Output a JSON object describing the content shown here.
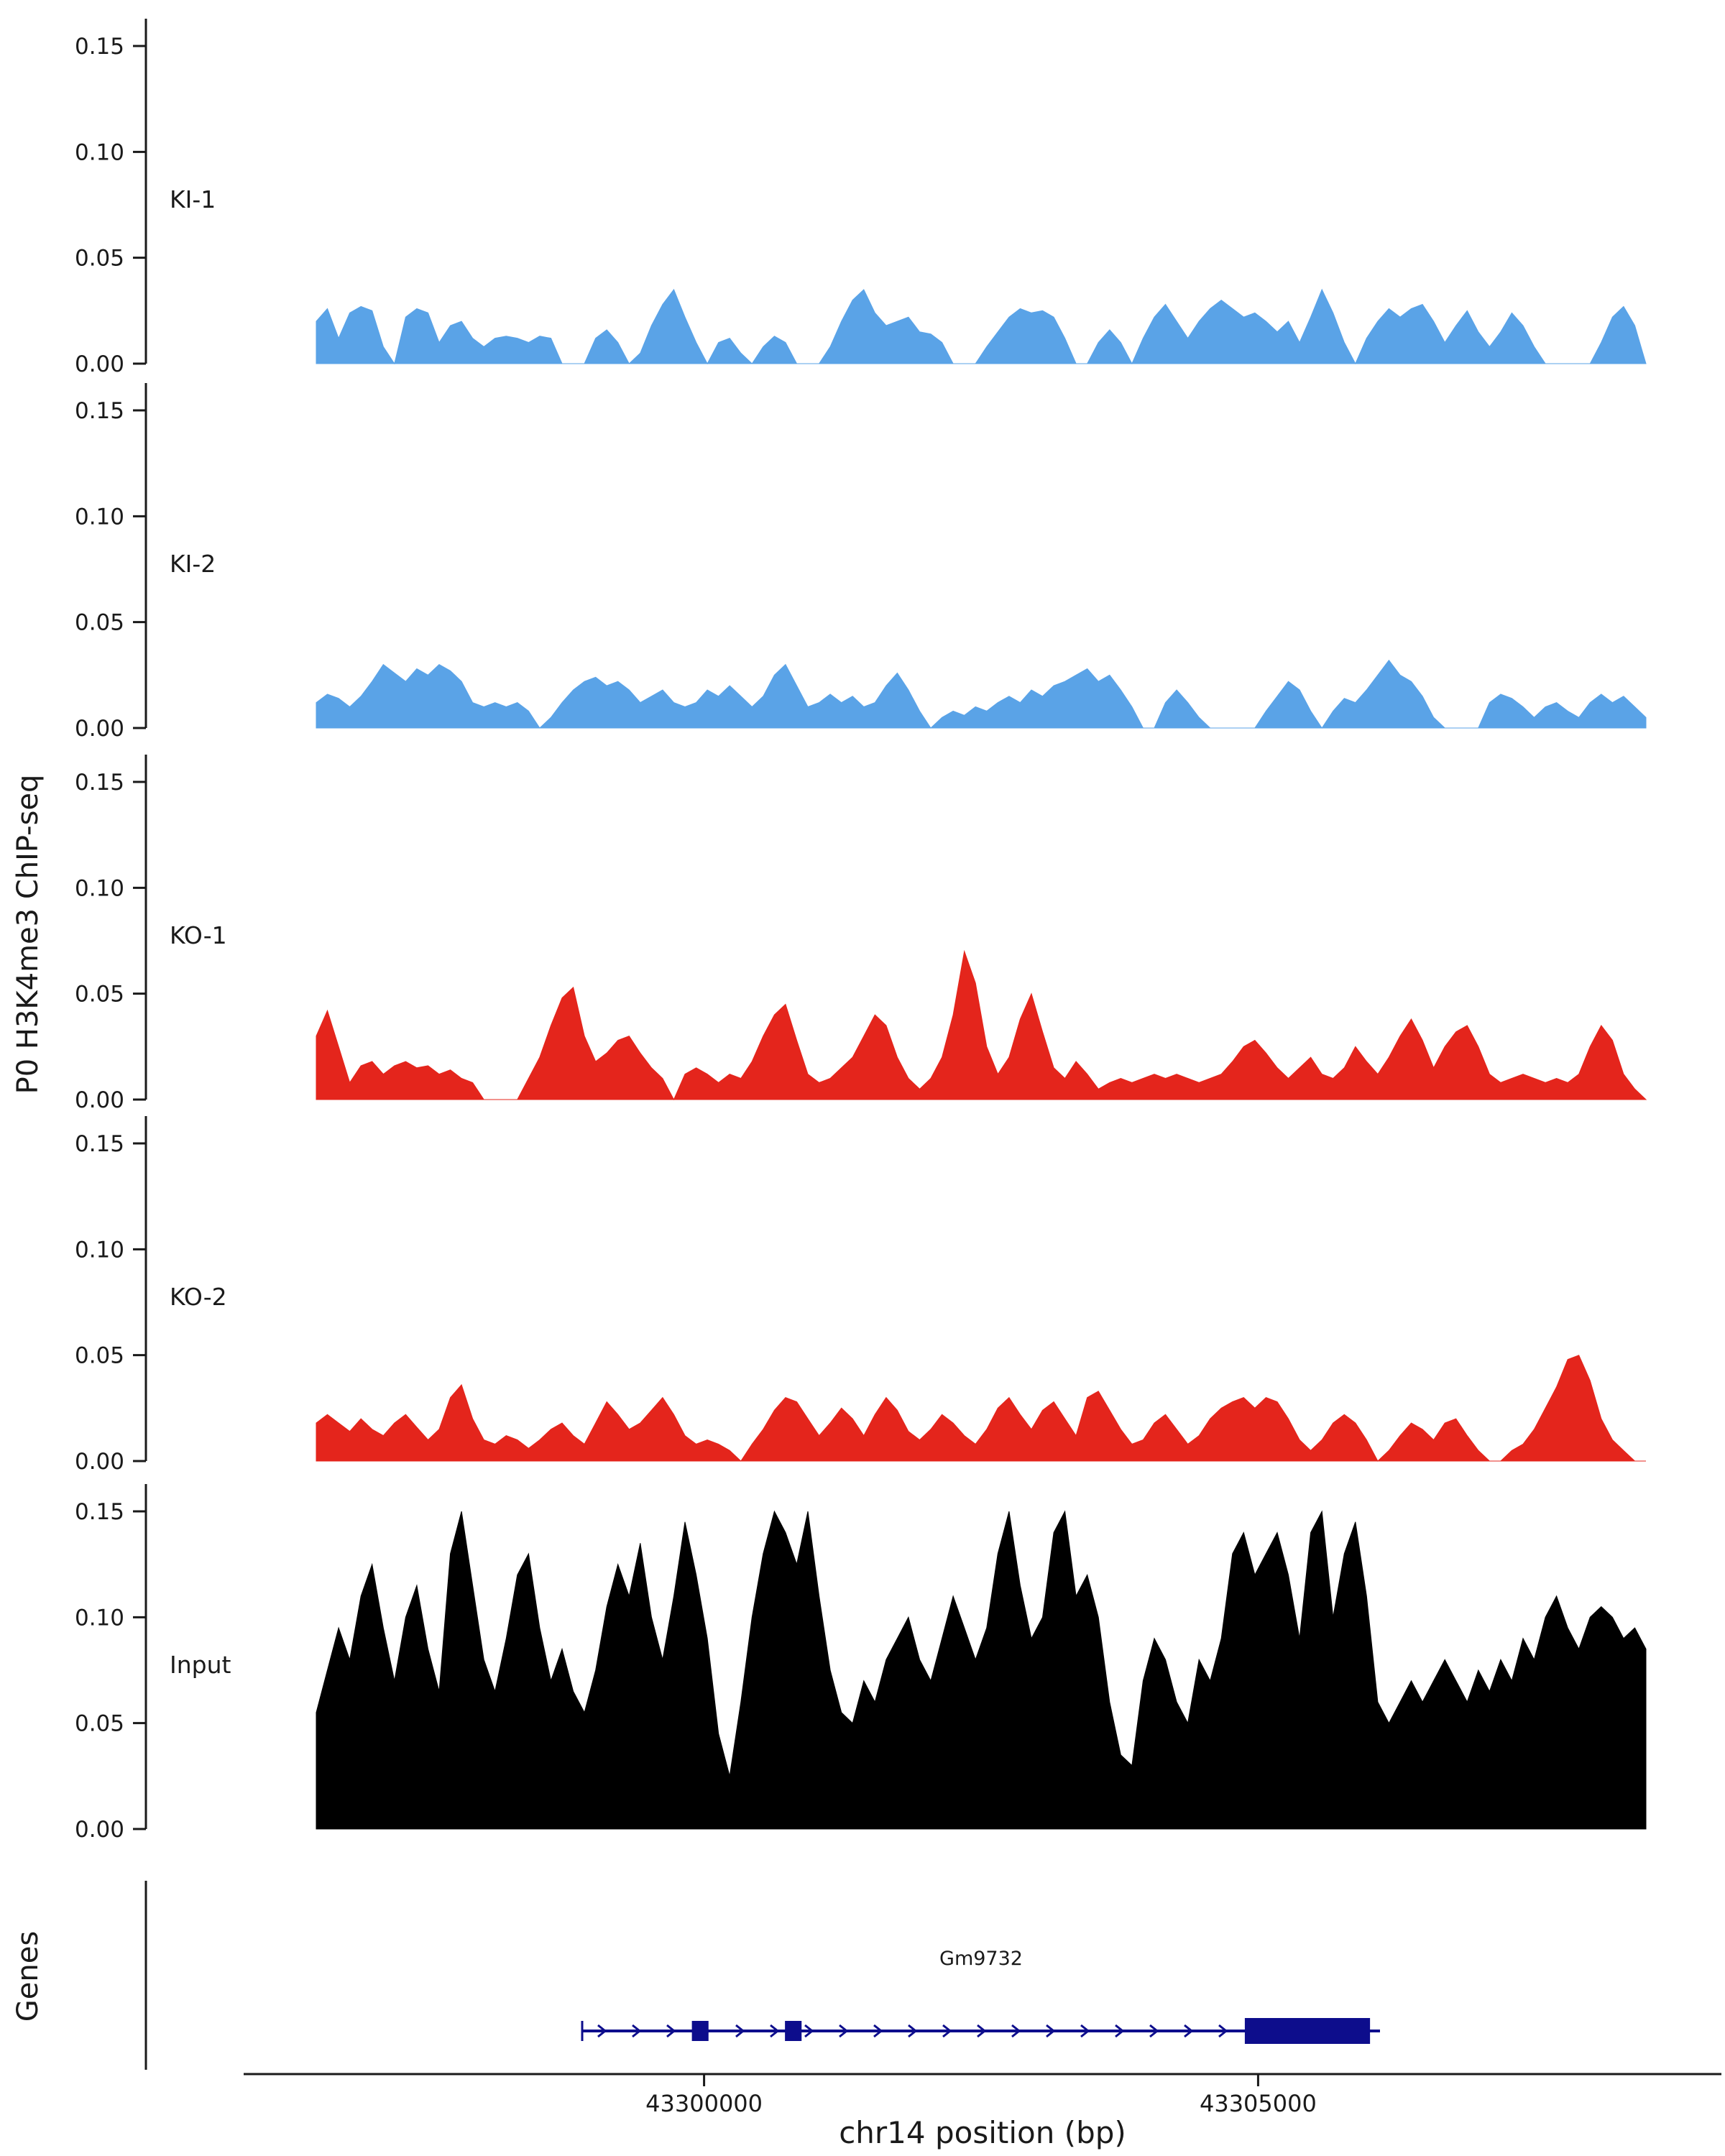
{
  "labels": {
    "y_axis_title": "P0 H3K4me3 ChIP-seq",
    "genes_title": "Genes",
    "x_axis_title": "chr14 position (bp)"
  },
  "colors": {
    "track_blue": "#5AA3E7",
    "track_red": "#E4251C",
    "input_black": "#000000",
    "gene_navy": "#0D0D8C",
    "text": "#1A1A1A"
  },
  "chart_data": {
    "type": "area",
    "title": "",
    "xlabel": "chr14 position (bp)",
    "ylabel": "P0 H3K4me3 ChIP-seq",
    "x_range": [
      43296500,
      43308500
    ],
    "ylim": [
      0,
      0.15
    ],
    "y_ticks": [
      0.15,
      0.1,
      0.05,
      0.0
    ],
    "y_tick_labels": [
      "0.15",
      "0.10",
      "0.05",
      "0.00"
    ],
    "x_ticks": [
      43300000,
      43305000
    ],
    "x_tick_labels": [
      "43300000",
      "43305000"
    ],
    "grid": false,
    "legend": "none (track labels inside panels)",
    "tracks": [
      {
        "label": "KI-1",
        "color": "#5AA3E7",
        "values": [
          0.02,
          0.026,
          0.012,
          0.024,
          0.027,
          0.025,
          0.008,
          0.0,
          0.022,
          0.026,
          0.024,
          0.01,
          0.018,
          0.02,
          0.012,
          0.008,
          0.012,
          0.013,
          0.012,
          0.01,
          0.013,
          0.012,
          0.0,
          0.0,
          0.0,
          0.012,
          0.016,
          0.01,
          0.0,
          0.005,
          0.018,
          0.028,
          0.035,
          0.022,
          0.01,
          0.0,
          0.01,
          0.012,
          0.005,
          0.0,
          0.008,
          0.013,
          0.01,
          0.0,
          0.0,
          0.0,
          0.008,
          0.02,
          0.03,
          0.035,
          0.024,
          0.018,
          0.02,
          0.022,
          0.015,
          0.014,
          0.01,
          0.0,
          0.0,
          0.0,
          0.008,
          0.015,
          0.022,
          0.026,
          0.024,
          0.025,
          0.022,
          0.012,
          0.0,
          0.0,
          0.01,
          0.016,
          0.01,
          0.0,
          0.012,
          0.022,
          0.028,
          0.02,
          0.012,
          0.02,
          0.026,
          0.03,
          0.026,
          0.022,
          0.024,
          0.02,
          0.015,
          0.02,
          0.01,
          0.022,
          0.035,
          0.024,
          0.01,
          0.0,
          0.012,
          0.02,
          0.026,
          0.022,
          0.026,
          0.028,
          0.02,
          0.01,
          0.018,
          0.025,
          0.015,
          0.008,
          0.015,
          0.024,
          0.018,
          0.008,
          0.0,
          0.0,
          0.0,
          0.0,
          0.0,
          0.01,
          0.022,
          0.027,
          0.018,
          0.0
        ]
      },
      {
        "label": "KI-2",
        "color": "#5AA3E7",
        "values": [
          0.012,
          0.016,
          0.014,
          0.01,
          0.015,
          0.022,
          0.03,
          0.026,
          0.022,
          0.028,
          0.025,
          0.03,
          0.027,
          0.022,
          0.012,
          0.01,
          0.012,
          0.01,
          0.012,
          0.008,
          0.0,
          0.005,
          0.012,
          0.018,
          0.022,
          0.024,
          0.02,
          0.022,
          0.018,
          0.012,
          0.015,
          0.018,
          0.012,
          0.01,
          0.012,
          0.018,
          0.015,
          0.02,
          0.015,
          0.01,
          0.015,
          0.025,
          0.03,
          0.02,
          0.01,
          0.012,
          0.016,
          0.012,
          0.015,
          0.01,
          0.012,
          0.02,
          0.026,
          0.018,
          0.008,
          0.0,
          0.005,
          0.008,
          0.006,
          0.01,
          0.008,
          0.012,
          0.015,
          0.012,
          0.018,
          0.015,
          0.02,
          0.022,
          0.025,
          0.028,
          0.022,
          0.025,
          0.018,
          0.01,
          0.0,
          0.0,
          0.012,
          0.018,
          0.012,
          0.005,
          0.0,
          0.0,
          0.0,
          0.0,
          0.0,
          0.008,
          0.015,
          0.022,
          0.018,
          0.008,
          0.0,
          0.008,
          0.014,
          0.012,
          0.018,
          0.025,
          0.032,
          0.025,
          0.022,
          0.015,
          0.005,
          0.0,
          0.0,
          0.0,
          0.0,
          0.012,
          0.016,
          0.014,
          0.01,
          0.005,
          0.01,
          0.012,
          0.008,
          0.005,
          0.012,
          0.016,
          0.012,
          0.015,
          0.01,
          0.005
        ]
      },
      {
        "label": "KO-1",
        "color": "#E4251C",
        "values": [
          0.03,
          0.042,
          0.025,
          0.008,
          0.016,
          0.018,
          0.012,
          0.016,
          0.018,
          0.015,
          0.016,
          0.012,
          0.014,
          0.01,
          0.008,
          0.0,
          0.0,
          0.0,
          0.0,
          0.01,
          0.02,
          0.035,
          0.048,
          0.053,
          0.03,
          0.018,
          0.022,
          0.028,
          0.03,
          0.022,
          0.015,
          0.01,
          0.0,
          0.012,
          0.015,
          0.012,
          0.008,
          0.012,
          0.01,
          0.018,
          0.03,
          0.04,
          0.045,
          0.028,
          0.012,
          0.008,
          0.01,
          0.015,
          0.02,
          0.03,
          0.04,
          0.035,
          0.02,
          0.01,
          0.005,
          0.01,
          0.02,
          0.04,
          0.07,
          0.055,
          0.025,
          0.012,
          0.02,
          0.038,
          0.05,
          0.032,
          0.015,
          0.01,
          0.018,
          0.012,
          0.005,
          0.008,
          0.01,
          0.008,
          0.01,
          0.012,
          0.01,
          0.012,
          0.01,
          0.008,
          0.01,
          0.012,
          0.018,
          0.025,
          0.028,
          0.022,
          0.015,
          0.01,
          0.015,
          0.02,
          0.012,
          0.01,
          0.015,
          0.025,
          0.018,
          0.012,
          0.02,
          0.03,
          0.038,
          0.028,
          0.015,
          0.025,
          0.032,
          0.035,
          0.025,
          0.012,
          0.008,
          0.01,
          0.012,
          0.01,
          0.008,
          0.01,
          0.008,
          0.012,
          0.025,
          0.035,
          0.028,
          0.012,
          0.005,
          0.0
        ]
      },
      {
        "label": "KO-2",
        "color": "#E4251C",
        "values": [
          0.018,
          0.022,
          0.018,
          0.014,
          0.02,
          0.015,
          0.012,
          0.018,
          0.022,
          0.016,
          0.01,
          0.015,
          0.03,
          0.036,
          0.02,
          0.01,
          0.008,
          0.012,
          0.01,
          0.006,
          0.01,
          0.015,
          0.018,
          0.012,
          0.008,
          0.018,
          0.028,
          0.022,
          0.015,
          0.018,
          0.024,
          0.03,
          0.022,
          0.012,
          0.008,
          0.01,
          0.008,
          0.005,
          0.0,
          0.008,
          0.015,
          0.024,
          0.03,
          0.028,
          0.02,
          0.012,
          0.018,
          0.025,
          0.02,
          0.012,
          0.022,
          0.03,
          0.024,
          0.014,
          0.01,
          0.015,
          0.022,
          0.018,
          0.012,
          0.008,
          0.015,
          0.025,
          0.03,
          0.022,
          0.015,
          0.024,
          0.028,
          0.02,
          0.012,
          0.03,
          0.033,
          0.024,
          0.015,
          0.008,
          0.01,
          0.018,
          0.022,
          0.015,
          0.008,
          0.012,
          0.02,
          0.025,
          0.028,
          0.03,
          0.025,
          0.03,
          0.028,
          0.02,
          0.01,
          0.005,
          0.01,
          0.018,
          0.022,
          0.018,
          0.01,
          0.0,
          0.005,
          0.012,
          0.018,
          0.015,
          0.01,
          0.018,
          0.02,
          0.012,
          0.005,
          0.0,
          0.0,
          0.005,
          0.008,
          0.015,
          0.025,
          0.035,
          0.048,
          0.05,
          0.038,
          0.02,
          0.01,
          0.005,
          0.0,
          0.0
        ]
      },
      {
        "label": "Input",
        "color": "#000000",
        "values": [
          0.055,
          0.075,
          0.095,
          0.08,
          0.11,
          0.125,
          0.095,
          0.07,
          0.1,
          0.115,
          0.085,
          0.065,
          0.13,
          0.15,
          0.115,
          0.08,
          0.065,
          0.09,
          0.12,
          0.13,
          0.095,
          0.07,
          0.085,
          0.065,
          0.055,
          0.075,
          0.105,
          0.125,
          0.11,
          0.135,
          0.1,
          0.08,
          0.11,
          0.145,
          0.12,
          0.09,
          0.045,
          0.025,
          0.06,
          0.1,
          0.13,
          0.15,
          0.14,
          0.125,
          0.15,
          0.11,
          0.075,
          0.055,
          0.05,
          0.07,
          0.06,
          0.08,
          0.09,
          0.1,
          0.08,
          0.07,
          0.09,
          0.11,
          0.095,
          0.08,
          0.095,
          0.13,
          0.15,
          0.115,
          0.09,
          0.1,
          0.14,
          0.15,
          0.11,
          0.12,
          0.1,
          0.06,
          0.035,
          0.03,
          0.07,
          0.09,
          0.08,
          0.06,
          0.05,
          0.08,
          0.07,
          0.09,
          0.13,
          0.14,
          0.12,
          0.13,
          0.14,
          0.12,
          0.09,
          0.14,
          0.15,
          0.1,
          0.13,
          0.145,
          0.11,
          0.06,
          0.05,
          0.06,
          0.07,
          0.06,
          0.07,
          0.08,
          0.07,
          0.06,
          0.075,
          0.065,
          0.08,
          0.07,
          0.09,
          0.08,
          0.1,
          0.11,
          0.095,
          0.085,
          0.1,
          0.105,
          0.1,
          0.09,
          0.095,
          0.085
        ]
      }
    ],
    "genes": [
      {
        "name": "Gm9732",
        "chromosome": "chr14",
        "start": 43298900,
        "end": 43306100,
        "strand": "+",
        "exons": [
          {
            "start": 43299890,
            "end": 43300040
          },
          {
            "start": 43300730,
            "end": 43300880
          },
          {
            "start": 43304880,
            "end": 43306010
          }
        ]
      }
    ]
  }
}
